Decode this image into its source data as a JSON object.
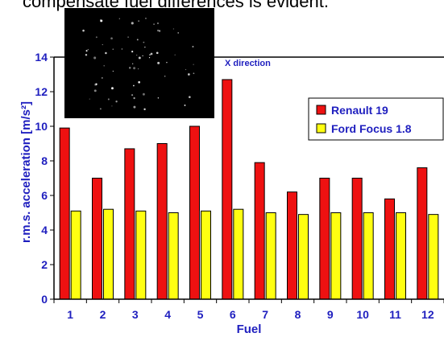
{
  "caption": "compensate fuel differences is evident.",
  "colors": {
    "renault": "#ee1111",
    "ford": "#ffff11",
    "text": "#1f1fbf",
    "axis": "#000000",
    "inset_bg": "#000000",
    "inset_dot": "#ffffff"
  },
  "chart_data": {
    "type": "bar",
    "title": "",
    "xlabel": "Fuel",
    "ylabel": "r.m.s. acceleration [m/s²]",
    "ylim": [
      0,
      14
    ],
    "yticks": [
      "0",
      "2",
      "4",
      "6",
      "8",
      "10",
      "12",
      "14"
    ],
    "categories": [
      "1",
      "2",
      "3",
      "4",
      "5",
      "6",
      "7",
      "8",
      "9",
      "10",
      "11",
      "12"
    ],
    "series": [
      {
        "name": "Renault 19",
        "values": [
          9.9,
          7.0,
          8.7,
          9.0,
          10.0,
          12.7,
          7.9,
          6.2,
          7.0,
          7.0,
          5.8,
          7.6
        ]
      },
      {
        "name": "Ford Focus 1.8",
        "values": [
          5.1,
          5.2,
          5.1,
          5.0,
          5.1,
          5.2,
          5.0,
          4.9,
          5.0,
          5.0,
          5.0,
          4.9
        ]
      }
    ],
    "annotations": [
      "X direction"
    ],
    "legend": "top-right",
    "grid": false,
    "reference_line": 14
  }
}
